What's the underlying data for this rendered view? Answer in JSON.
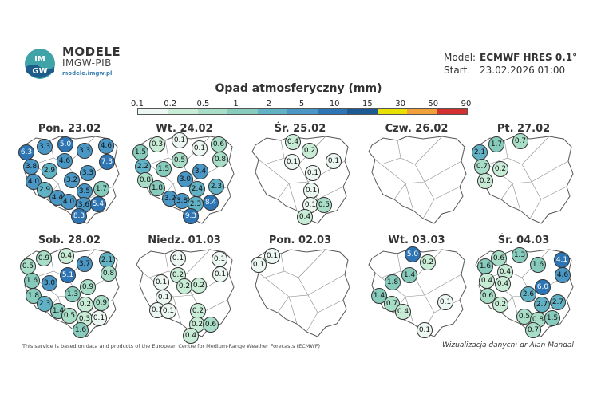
{
  "brand": {
    "title": "MODELE",
    "subtitle": "IMGW-PIB",
    "url": "modele.imgw.pl",
    "logo_text": "IM GW"
  },
  "header": {
    "model_label": "Model:",
    "model_value": "ECMWF HRES 0.1°",
    "start_label": "Start:",
    "start_value": "23.02.2026 01:00"
  },
  "legend": {
    "title": "Opad atmosferyczny (mm)",
    "ticks": [
      "0.1",
      "0.2",
      "0.5",
      "1",
      "2",
      "5",
      "10",
      "15",
      "30",
      "50",
      "90"
    ],
    "colors": [
      "#edf7f2",
      "#c9ecd7",
      "#a8ddc8",
      "#87cbbc",
      "#62b2c5",
      "#4a97c5",
      "#2d75b4",
      "#1c5a94",
      "#e8e000",
      "#f2a03a",
      "#d43030"
    ]
  },
  "maps": [
    {
      "day": "Pon. 23.02",
      "values": [
        {
          "v": "5.0",
          "x": 59,
          "y": 13,
          "c": "#2d75b4"
        },
        {
          "v": "3.3",
          "x": 33,
          "y": 16,
          "c": "#4a97c5"
        },
        {
          "v": "3.3",
          "x": 83,
          "y": 21,
          "c": "#4a97c5"
        },
        {
          "v": "4.6",
          "x": 110,
          "y": 15,
          "c": "#4a97c5"
        },
        {
          "v": "6.3",
          "x": 10,
          "y": 23,
          "c": "#2d75b4"
        },
        {
          "v": "4.6",
          "x": 58,
          "y": 34,
          "c": "#4a97c5"
        },
        {
          "v": "7.3",
          "x": 111,
          "y": 35,
          "c": "#2d75b4"
        },
        {
          "v": "3.8",
          "x": 16,
          "y": 41,
          "c": "#4a97c5"
        },
        {
          "v": "2.9",
          "x": 39,
          "y": 46,
          "c": "#62b2c5"
        },
        {
          "v": "3.3",
          "x": 87,
          "y": 49,
          "c": "#4a97c5"
        },
        {
          "v": "4.0",
          "x": 19,
          "y": 60,
          "c": "#4a97c5"
        },
        {
          "v": "3.2",
          "x": 67,
          "y": 58,
          "c": "#4a97c5"
        },
        {
          "v": "2.9",
          "x": 33,
          "y": 70,
          "c": "#62b2c5"
        },
        {
          "v": "3.5",
          "x": 83,
          "y": 72,
          "c": "#4a97c5"
        },
        {
          "v": "1.7",
          "x": 104,
          "y": 69,
          "c": "#87cbbc"
        },
        {
          "v": "4.4",
          "x": 49,
          "y": 80,
          "c": "#4a97c5"
        },
        {
          "v": "4.0",
          "x": 63,
          "y": 85,
          "c": "#4a97c5"
        },
        {
          "v": "3.6",
          "x": 82,
          "y": 89,
          "c": "#4a97c5"
        },
        {
          "v": "5.4",
          "x": 100,
          "y": 88,
          "c": "#2d75b4"
        },
        {
          "v": "8.3",
          "x": 76,
          "y": 103,
          "c": "#2d75b4"
        }
      ]
    },
    {
      "day": "Wt. 24.02",
      "values": [
        {
          "v": "0.1",
          "x": 58,
          "y": 8,
          "c": "#edf7f2"
        },
        {
          "v": "0.3",
          "x": 30,
          "y": 13,
          "c": "#c9ecd7"
        },
        {
          "v": "0.1",
          "x": 83,
          "y": 18,
          "c": "#edf7f2"
        },
        {
          "v": "0.6",
          "x": 107,
          "y": 13,
          "c": "#a8ddc8"
        },
        {
          "v": "1.5",
          "x": 9,
          "y": 23,
          "c": "#87cbbc"
        },
        {
          "v": "0.5",
          "x": 58,
          "y": 33,
          "c": "#a8ddc8"
        },
        {
          "v": "0.8",
          "x": 109,
          "y": 32,
          "c": "#a8ddc8"
        },
        {
          "v": "2.2",
          "x": 12,
          "y": 41,
          "c": "#62b2c5"
        },
        {
          "v": "1.5",
          "x": 38,
          "y": 44,
          "c": "#87cbbc"
        },
        {
          "v": "3.4",
          "x": 84,
          "y": 47,
          "c": "#4a97c5"
        },
        {
          "v": "0.8",
          "x": 15,
          "y": 58,
          "c": "#a8ddc8"
        },
        {
          "v": "3.0",
          "x": 65,
          "y": 57,
          "c": "#4a97c5"
        },
        {
          "v": "1.8",
          "x": 30,
          "y": 68,
          "c": "#87cbbc"
        },
        {
          "v": "2.4",
          "x": 80,
          "y": 69,
          "c": "#62b2c5"
        },
        {
          "v": "2.3",
          "x": 104,
          "y": 66,
          "c": "#62b2c5"
        },
        {
          "v": "3.2",
          "x": 46,
          "y": 81,
          "c": "#4a97c5"
        },
        {
          "v": "3.8",
          "x": 61,
          "y": 84,
          "c": "#4a97c5"
        },
        {
          "v": "2.3",
          "x": 78,
          "y": 88,
          "c": "#62b2c5"
        },
        {
          "v": "8.4",
          "x": 97,
          "y": 86,
          "c": "#2d75b4"
        },
        {
          "v": "9.3",
          "x": 72,
          "y": 103,
          "c": "#2d75b4"
        }
      ]
    },
    {
      "day": "Śr. 25.02",
      "values": [
        {
          "v": "0.4",
          "x": 55,
          "y": 10,
          "c": "#c9ecd7"
        },
        {
          "v": "0.2",
          "x": 76,
          "y": 21,
          "c": "#c9ecd7"
        },
        {
          "v": "0.1",
          "x": 106,
          "y": 34,
          "c": "#edf7f2"
        },
        {
          "v": "0.1",
          "x": 54,
          "y": 35,
          "c": "#edf7f2"
        },
        {
          "v": "0.1",
          "x": 80,
          "y": 49,
          "c": "#edf7f2"
        },
        {
          "v": "0.1",
          "x": 78,
          "y": 71,
          "c": "#edf7f2"
        },
        {
          "v": "0.1",
          "x": 77,
          "y": 89,
          "c": "#edf7f2"
        },
        {
          "v": "0.5",
          "x": 94,
          "y": 89,
          "c": "#a8ddc8"
        },
        {
          "v": "0.4",
          "x": 70,
          "y": 104,
          "c": "#c9ecd7"
        }
      ]
    },
    {
      "day": "Czw. 26.02",
      "values": []
    },
    {
      "day": "Pt. 27.02",
      "values": [
        {
          "v": "0.7",
          "x": 60,
          "y": 9,
          "c": "#a8ddc8"
        },
        {
          "v": "1.7",
          "x": 30,
          "y": 13,
          "c": "#87cbbc"
        },
        {
          "v": "2.1",
          "x": 9,
          "y": 23,
          "c": "#62b2c5"
        },
        {
          "v": "0.7",
          "x": 12,
          "y": 41,
          "c": "#a8ddc8"
        },
        {
          "v": "0.2",
          "x": 35,
          "y": 44,
          "c": "#c9ecd7"
        },
        {
          "v": "0.2",
          "x": 16,
          "y": 59,
          "c": "#c9ecd7"
        }
      ]
    },
    {
      "day": "Sob. 28.02",
      "values": [
        {
          "v": "0.9",
          "x": 32,
          "y": 14,
          "c": "#a8ddc8"
        },
        {
          "v": "0.4",
          "x": 60,
          "y": 11,
          "c": "#c9ecd7"
        },
        {
          "v": "3.7",
          "x": 83,
          "y": 21,
          "c": "#4a97c5"
        },
        {
          "v": "2.1",
          "x": 111,
          "y": 16,
          "c": "#62b2c5"
        },
        {
          "v": "0.5",
          "x": 12,
          "y": 24,
          "c": "#a8ddc8"
        },
        {
          "v": "5.1",
          "x": 62,
          "y": 35,
          "c": "#2d75b4"
        },
        {
          "v": "0.8",
          "x": 113,
          "y": 33,
          "c": "#a8ddc8"
        },
        {
          "v": "1.6",
          "x": 17,
          "y": 42,
          "c": "#87cbbc"
        },
        {
          "v": "3.0",
          "x": 39,
          "y": 45,
          "c": "#4a97c5"
        },
        {
          "v": "0.9",
          "x": 87,
          "y": 50,
          "c": "#a8ddc8"
        },
        {
          "v": "1.8",
          "x": 19,
          "y": 61,
          "c": "#87cbbc"
        },
        {
          "v": "1.3",
          "x": 68,
          "y": 59,
          "c": "#87cbbc"
        },
        {
          "v": "2.3",
          "x": 33,
          "y": 71,
          "c": "#62b2c5"
        },
        {
          "v": "0.2",
          "x": 84,
          "y": 72,
          "c": "#c9ecd7"
        },
        {
          "v": "0.9",
          "x": 104,
          "y": 70,
          "c": "#a8ddc8"
        },
        {
          "v": "1.4",
          "x": 50,
          "y": 80,
          "c": "#87cbbc"
        },
        {
          "v": "0.5",
          "x": 64,
          "y": 86,
          "c": "#a8ddc8"
        },
        {
          "v": "0.3",
          "x": 83,
          "y": 90,
          "c": "#c9ecd7"
        },
        {
          "v": "0.1",
          "x": 101,
          "y": 89,
          "c": "#edf7f2"
        },
        {
          "v": "1.6",
          "x": 78,
          "y": 104,
          "c": "#87cbbc"
        }
      ]
    },
    {
      "day": "Niedz. 01.03",
      "values": [
        {
          "v": "0.1",
          "x": 56,
          "y": 14,
          "c": "#edf7f2"
        },
        {
          "v": "0.1",
          "x": 108,
          "y": 15,
          "c": "#edf7f2"
        },
        {
          "v": "0.1",
          "x": 109,
          "y": 34,
          "c": "#edf7f2"
        },
        {
          "v": "0.2",
          "x": 56,
          "y": 35,
          "c": "#c9ecd7"
        },
        {
          "v": "0.1",
          "x": 35,
          "y": 44,
          "c": "#edf7f2"
        },
        {
          "v": "0.2",
          "x": 64,
          "y": 49,
          "c": "#c9ecd7"
        },
        {
          "v": "0.2",
          "x": 82,
          "y": 48,
          "c": "#c9ecd7"
        },
        {
          "v": "0.1",
          "x": 38,
          "y": 63,
          "c": "#edf7f2"
        },
        {
          "v": "0.1",
          "x": 30,
          "y": 79,
          "c": "#edf7f2"
        },
        {
          "v": "0.1",
          "x": 44,
          "y": 80,
          "c": "#edf7f2"
        },
        {
          "v": "0.2",
          "x": 81,
          "y": 80,
          "c": "#c9ecd7"
        },
        {
          "v": "0.2",
          "x": 80,
          "y": 97,
          "c": "#c9ecd7"
        },
        {
          "v": "0.6",
          "x": 97,
          "y": 97,
          "c": "#a8ddc8"
        },
        {
          "v": "0.4",
          "x": 72,
          "y": 111,
          "c": "#c9ecd7"
        }
      ]
    },
    {
      "day": "Pon. 02.03",
      "values": [
        {
          "v": "0.1",
          "x": 29,
          "y": 11,
          "c": "#edf7f2"
        },
        {
          "v": "0.1",
          "x": 12,
          "y": 22,
          "c": "#edf7f2"
        }
      ]
    },
    {
      "day": "Wt. 03.03",
      "values": [
        {
          "v": "5.0",
          "x": 59,
          "y": 9,
          "c": "#2d75b4"
        },
        {
          "v": "0.2",
          "x": 78,
          "y": 19,
          "c": "#c9ecd7"
        },
        {
          "v": "1.4",
          "x": 55,
          "y": 35,
          "c": "#87cbbc"
        },
        {
          "v": "1.8",
          "x": 34,
          "y": 44,
          "c": "#87cbbc"
        },
        {
          "v": "1.4",
          "x": 17,
          "y": 61,
          "c": "#87cbbc"
        },
        {
          "v": "0.7",
          "x": 33,
          "y": 71,
          "c": "#a8ddc8"
        },
        {
          "v": "0.4",
          "x": 47,
          "y": 81,
          "c": "#c9ecd7"
        },
        {
          "v": "0.1",
          "x": 100,
          "y": 69,
          "c": "#edf7f2"
        },
        {
          "v": "0.1",
          "x": 74,
          "y": 104,
          "c": "#edf7f2"
        }
      ]
    },
    {
      "day": "Śr. 04.03",
      "values": [
        {
          "v": "1.3",
          "x": 59,
          "y": 10,
          "c": "#87cbbc"
        },
        {
          "v": "0.6",
          "x": 33,
          "y": 14,
          "c": "#a8ddc8"
        },
        {
          "v": "4.1",
          "x": 112,
          "y": 16,
          "c": "#2d75b4"
        },
        {
          "v": "1.6",
          "x": 16,
          "y": 24,
          "c": "#87cbbc"
        },
        {
          "v": "1.6",
          "x": 82,
          "y": 22,
          "c": "#87cbbc"
        },
        {
          "v": "0.4",
          "x": 41,
          "y": 31,
          "c": "#c9ecd7"
        },
        {
          "v": "4.6",
          "x": 113,
          "y": 35,
          "c": "#4a97c5"
        },
        {
          "v": "0.4",
          "x": 18,
          "y": 42,
          "c": "#c9ecd7"
        },
        {
          "v": "0.4",
          "x": 38,
          "y": 46,
          "c": "#c9ecd7"
        },
        {
          "v": "6.0",
          "x": 88,
          "y": 50,
          "c": "#2d75b4"
        },
        {
          "v": "0.6",
          "x": 19,
          "y": 61,
          "c": "#a8ddc8"
        },
        {
          "v": "2.6",
          "x": 70,
          "y": 59,
          "c": "#62b2c5"
        },
        {
          "v": "0.2",
          "x": 35,
          "y": 72,
          "c": "#c9ecd7"
        },
        {
          "v": "2.7",
          "x": 87,
          "y": 72,
          "c": "#62b2c5"
        },
        {
          "v": "2.7",
          "x": 107,
          "y": 69,
          "c": "#62b2c5"
        },
        {
          "v": "0.5",
          "x": 65,
          "y": 87,
          "c": "#a8ddc8"
        },
        {
          "v": "0.8",
          "x": 82,
          "y": 91,
          "c": "#a8ddc8"
        },
        {
          "v": "1.5",
          "x": 100,
          "y": 89,
          "c": "#87cbbc"
        },
        {
          "v": "0.7",
          "x": 76,
          "y": 104,
          "c": "#a8ddc8"
        }
      ]
    }
  ],
  "footer": {
    "left": "This service is based on data and products of the European Centre for Medium-Range Weather Forecasts (ECMWF)",
    "right": "Wizualizacja danych: dr Alan Mandal"
  }
}
